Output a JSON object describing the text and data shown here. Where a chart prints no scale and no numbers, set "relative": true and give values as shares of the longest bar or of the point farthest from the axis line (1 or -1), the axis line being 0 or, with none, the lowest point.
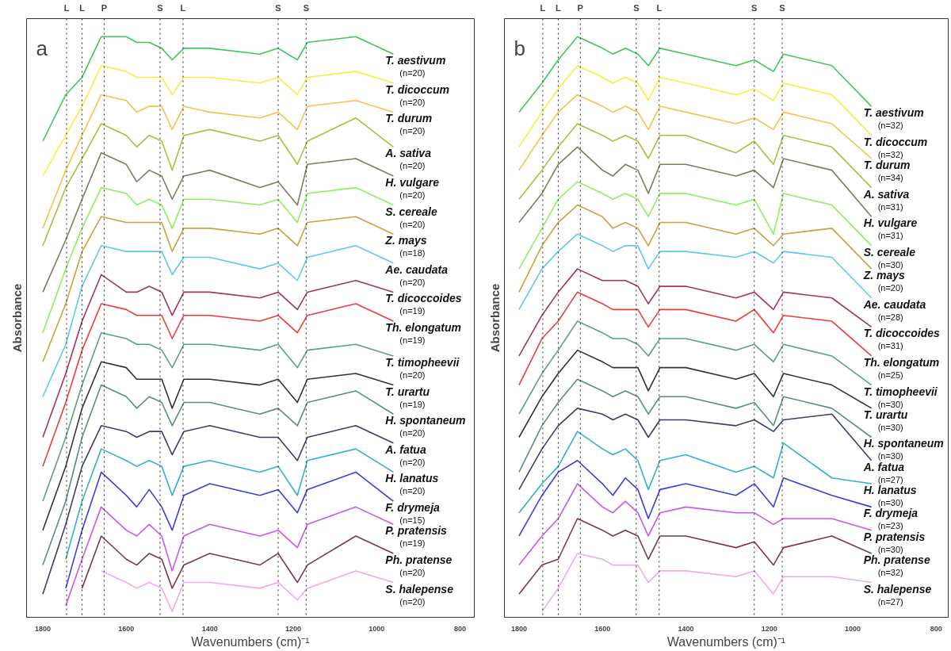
{
  "chart_data": [
    {
      "type": "line",
      "title": "a",
      "xlabel": "Wavenumbers (cm)⁻¹",
      "ylabel": "Absorbance",
      "relative": true,
      "grid": false,
      "xlim": [
        1839,
        766
      ],
      "xticks": [
        1800,
        1600,
        1400,
        1200,
        1000,
        800
      ],
      "x": [
        1800,
        1745,
        1706,
        1660,
        1600,
        1575,
        1545,
        1515,
        1490,
        1462,
        1400,
        1280,
        1236,
        1190,
        1166,
        1050,
        960
      ],
      "ref_lines": [
        {
          "axis": "x",
          "value": 1743,
          "label": "L",
          "line_style": "dotted"
        },
        {
          "axis": "x",
          "value": 1706,
          "label": "L",
          "line_style": "dotted"
        },
        {
          "axis": "x",
          "value": 1653,
          "label": "P",
          "line_style": "dotted"
        },
        {
          "axis": "x",
          "value": 1519,
          "label": "S",
          "line_style": "dotted"
        },
        {
          "axis": "x",
          "value": 1464,
          "label": "L",
          "line_style": "dotted"
        },
        {
          "axis": "x",
          "value": 1236,
          "label": "S",
          "line_style": "dotted"
        },
        {
          "axis": "x",
          "value": 1169,
          "label": "S",
          "line_style": "dotted"
        }
      ],
      "series": [
        {
          "name": "T. aestivum\n(n=20)",
          "color": "#3cc95a",
          "values": [
            0.82,
            0.9,
            0.93,
            1.0,
            1.0,
            0.99,
            0.99,
            0.98,
            0.96,
            0.98,
            0.98,
            0.97,
            0.98,
            0.96,
            0.99,
            1.0,
            0.97
          ]
        },
        {
          "name": "T. dicoccum\n(n=20)",
          "color": "#f2f040",
          "values": [
            0.76,
            0.83,
            0.88,
            0.95,
            0.94,
            0.93,
            0.93,
            0.93,
            0.9,
            0.93,
            0.93,
            0.92,
            0.93,
            0.9,
            0.93,
            0.94,
            0.92
          ]
        },
        {
          "name": "T. durum\n(n=20)",
          "color": "#f5c24a",
          "values": [
            0.67,
            0.77,
            0.83,
            0.9,
            0.89,
            0.87,
            0.88,
            0.88,
            0.84,
            0.88,
            0.87,
            0.86,
            0.87,
            0.84,
            0.88,
            0.89,
            0.87
          ]
        },
        {
          "name": "A. sativa\n(n=20)",
          "color": "#a4c23c",
          "values": [
            0.64,
            0.74,
            0.79,
            0.85,
            0.83,
            0.81,
            0.83,
            0.82,
            0.77,
            0.83,
            0.84,
            0.82,
            0.83,
            0.78,
            0.82,
            0.86,
            0.81
          ]
        },
        {
          "name": "H. vulgare\n(n=20)",
          "color": "#7d7d62",
          "values": [
            0.56,
            0.65,
            0.72,
            0.8,
            0.78,
            0.75,
            0.77,
            0.76,
            0.72,
            0.76,
            0.77,
            0.74,
            0.75,
            0.71,
            0.78,
            0.79,
            0.76
          ]
        },
        {
          "name": "S. cereale\n(n=20)",
          "color": "#8ef05a",
          "values": [
            0.49,
            0.6,
            0.67,
            0.74,
            0.73,
            0.71,
            0.72,
            0.71,
            0.67,
            0.72,
            0.72,
            0.71,
            0.72,
            0.68,
            0.73,
            0.74,
            0.71
          ]
        },
        {
          "name": "Z. mays\n(n=18)",
          "color": "#c9a23e",
          "values": [
            0.44,
            0.54,
            0.63,
            0.69,
            0.68,
            0.68,
            0.68,
            0.68,
            0.63,
            0.67,
            0.67,
            0.66,
            0.67,
            0.64,
            0.68,
            0.69,
            0.66
          ]
        },
        {
          "name": "Ae. caudata\n(n=20)",
          "color": "#5ccaf0",
          "values": [
            0.38,
            0.47,
            0.57,
            0.64,
            0.63,
            0.63,
            0.63,
            0.63,
            0.59,
            0.62,
            0.62,
            0.6,
            0.61,
            0.58,
            0.62,
            0.64,
            0.61
          ]
        },
        {
          "name": "T. dicoccoides\n(n=19)",
          "color": "#a3335e",
          "values": [
            0.31,
            0.42,
            0.51,
            0.59,
            0.56,
            0.56,
            0.57,
            0.56,
            0.52,
            0.56,
            0.56,
            0.55,
            0.56,
            0.53,
            0.56,
            0.58,
            0.56
          ]
        },
        {
          "name": "Th. elongatum\n(n=19)",
          "color": "#ee3b3b",
          "values": [
            0.26,
            0.37,
            0.46,
            0.54,
            0.53,
            0.52,
            0.52,
            0.52,
            0.48,
            0.52,
            0.52,
            0.51,
            0.52,
            0.49,
            0.52,
            0.54,
            0.51
          ]
        },
        {
          "name": "T. timopheevii\n(n=20)",
          "color": "#5aa084",
          "values": [
            0.2,
            0.31,
            0.4,
            0.49,
            0.48,
            0.47,
            0.47,
            0.46,
            0.43,
            0.47,
            0.47,
            0.46,
            0.47,
            0.43,
            0.46,
            0.47,
            0.45
          ]
        },
        {
          "name": "T. urartu\n(n=19)",
          "color": "#333333",
          "values": [
            0.15,
            0.26,
            0.36,
            0.44,
            0.43,
            0.41,
            0.41,
            0.41,
            0.36,
            0.41,
            0.41,
            0.4,
            0.41,
            0.37,
            0.41,
            0.42,
            0.4
          ]
        },
        {
          "name": "H. spontaneum\n(n=20)",
          "color": "#5c8c88",
          "values": [
            0.09,
            0.2,
            0.31,
            0.4,
            0.38,
            0.36,
            0.38,
            0.37,
            0.33,
            0.37,
            0.37,
            0.35,
            0.36,
            0.33,
            0.37,
            0.39,
            0.35
          ]
        },
        {
          "name": "A. fatua\n(n=20)",
          "color": "#3c3c6c",
          "values": [
            0.04,
            0.16,
            0.26,
            0.33,
            0.32,
            0.31,
            0.32,
            0.32,
            0.28,
            0.32,
            0.33,
            0.31,
            0.31,
            0.27,
            0.31,
            0.33,
            0.3
          ]
        },
        {
          "name": "H. lanatus\n(n=20)",
          "color": "#30b2cc",
          "values": [
            null,
            0.1,
            0.2,
            0.29,
            0.27,
            0.26,
            0.27,
            0.26,
            0.21,
            0.26,
            0.27,
            0.25,
            0.26,
            0.21,
            0.27,
            0.29,
            0.25
          ]
        },
        {
          "name": "F. drymeja\n(n=15)",
          "color": "#3c3ce0",
          "values": [
            null,
            0.05,
            0.15,
            0.25,
            0.21,
            0.19,
            0.22,
            0.19,
            0.15,
            0.21,
            0.23,
            0.21,
            0.22,
            0.18,
            0.22,
            0.25,
            0.2
          ]
        },
        {
          "name": "P. pratensis\n(n=19)",
          "color": "#cc55ee",
          "values": [
            null,
            0.02,
            0.1,
            0.19,
            0.15,
            0.14,
            0.16,
            0.14,
            0.08,
            0.14,
            0.16,
            0.14,
            0.15,
            0.12,
            0.16,
            0.19,
            0.16
          ]
        },
        {
          "name": "Ph. pratense\n(n=20)",
          "color": "#7a3a4a",
          "values": [
            null,
            null,
            0.05,
            0.14,
            0.1,
            0.09,
            0.11,
            0.1,
            0.05,
            0.09,
            0.11,
            0.09,
            0.11,
            0.06,
            0.09,
            0.14,
            0.11
          ]
        },
        {
          "name": "S. halepense\n(n=20)",
          "color": "#eeaaee",
          "values": [
            null,
            null,
            null,
            0.08,
            0.06,
            0.05,
            0.06,
            0.05,
            0.01,
            0.06,
            0.06,
            0.05,
            0.06,
            0.03,
            0.05,
            0.08,
            0.06
          ]
        }
      ]
    },
    {
      "type": "line",
      "title": "b",
      "xlabel": "Wavenumbers (cm)⁻¹",
      "ylabel": "Absorbance",
      "relative": true,
      "grid": false,
      "xlim": [
        1835,
        771
      ],
      "xticks": [
        1800,
        1600,
        1400,
        1200,
        1000,
        800
      ],
      "x": [
        1800,
        1745,
        1706,
        1660,
        1600,
        1575,
        1545,
        1515,
        1490,
        1462,
        1400,
        1280,
        1236,
        1190,
        1166,
        1050,
        955
      ],
      "ref_lines": [
        {
          "axis": "x",
          "value": 1743,
          "label": "L",
          "line_style": "dotted"
        },
        {
          "axis": "x",
          "value": 1706,
          "label": "L",
          "line_style": "dotted"
        },
        {
          "axis": "x",
          "value": 1653,
          "label": "P",
          "line_style": "dotted"
        },
        {
          "axis": "x",
          "value": 1519,
          "label": "S",
          "line_style": "dotted"
        },
        {
          "axis": "x",
          "value": 1464,
          "label": "L",
          "line_style": "dotted"
        },
        {
          "axis": "x",
          "value": 1236,
          "label": "S",
          "line_style": "dotted"
        },
        {
          "axis": "x",
          "value": 1169,
          "label": "S",
          "line_style": "dotted"
        }
      ],
      "series": [
        {
          "name": "T. aestivum\n(n=32)",
          "color": "#3cc95a",
          "values": [
            0.87,
            0.92,
            0.96,
            1.0,
            0.98,
            0.97,
            0.98,
            0.97,
            0.95,
            0.98,
            0.97,
            0.95,
            0.96,
            0.94,
            0.97,
            0.95,
            0.88
          ]
        },
        {
          "name": "T. dicoccum\n(n=32)",
          "color": "#f2f040",
          "values": [
            0.81,
            0.87,
            0.91,
            0.95,
            0.93,
            0.92,
            0.93,
            0.92,
            0.89,
            0.93,
            0.92,
            0.9,
            0.91,
            0.89,
            0.92,
            0.9,
            0.83
          ]
        },
        {
          "name": "T. durum\n(n=34)",
          "color": "#f5c24a",
          "values": [
            0.77,
            0.83,
            0.87,
            0.9,
            0.88,
            0.87,
            0.88,
            0.87,
            0.84,
            0.88,
            0.87,
            0.85,
            0.86,
            0.84,
            0.87,
            0.85,
            0.79
          ]
        },
        {
          "name": "A. sativa\n(n=31)",
          "color": "#a4c23c",
          "values": [
            0.72,
            0.77,
            0.81,
            0.85,
            0.83,
            0.82,
            0.83,
            0.82,
            0.79,
            0.83,
            0.83,
            0.8,
            0.82,
            0.78,
            0.83,
            0.81,
            0.74
          ]
        },
        {
          "name": "H. vulgare\n(n=31)",
          "color": "#7d7d62",
          "values": [
            0.68,
            0.73,
            0.78,
            0.81,
            0.77,
            0.76,
            0.78,
            0.77,
            0.73,
            0.78,
            0.78,
            0.76,
            0.77,
            0.74,
            0.79,
            0.77,
            0.69
          ]
        },
        {
          "name": "S. cereale\n(n=30)",
          "color": "#8ef05a",
          "values": [
            0.6,
            0.67,
            0.72,
            0.75,
            0.73,
            0.72,
            0.73,
            0.72,
            0.69,
            0.73,
            0.73,
            0.71,
            0.72,
            0.66,
            0.73,
            0.71,
            0.64
          ]
        },
        {
          "name": "Z. mays\n(n=20)",
          "color": "#c9a23e",
          "values": [
            0.56,
            0.64,
            0.68,
            0.71,
            0.69,
            0.67,
            0.68,
            0.67,
            0.64,
            0.68,
            0.68,
            0.66,
            0.67,
            0.64,
            0.66,
            0.67,
            0.6
          ]
        },
        {
          "name": "Ae. caudata\n(n=28)",
          "color": "#5ccaf0",
          "values": [
            0.53,
            0.6,
            0.63,
            0.66,
            0.64,
            0.63,
            0.64,
            0.64,
            0.6,
            0.63,
            0.63,
            0.62,
            0.63,
            0.61,
            0.63,
            0.62,
            0.55
          ]
        },
        {
          "name": "T. dicoccoides\n(n=31)",
          "color": "#a3335e",
          "values": [
            0.45,
            0.52,
            0.56,
            0.6,
            0.58,
            0.58,
            0.58,
            0.57,
            0.54,
            0.57,
            0.57,
            0.55,
            0.56,
            0.53,
            0.56,
            0.55,
            0.5
          ]
        },
        {
          "name": "Th. elongatum\n(n=25)",
          "color": "#ee3b3b",
          "values": [
            0.4,
            0.48,
            0.51,
            0.56,
            0.54,
            0.53,
            0.53,
            0.53,
            0.5,
            0.53,
            0.53,
            0.51,
            0.53,
            0.49,
            0.52,
            0.51,
            0.45
          ]
        },
        {
          "name": "T. timopheevii\n(n=30)",
          "color": "#5aa084",
          "values": [
            0.35,
            0.42,
            0.46,
            0.51,
            0.49,
            0.48,
            0.48,
            0.47,
            0.45,
            0.48,
            0.48,
            0.46,
            0.47,
            0.44,
            0.47,
            0.45,
            0.4
          ]
        },
        {
          "name": "T. urartu\n(n=30)",
          "color": "#333333",
          "values": [
            0.31,
            0.38,
            0.42,
            0.46,
            0.44,
            0.43,
            0.43,
            0.43,
            0.39,
            0.43,
            0.43,
            0.41,
            0.42,
            0.38,
            0.42,
            0.4,
            0.36
          ]
        },
        {
          "name": "H. spontaneum\n(n=30)",
          "color": "#5c8c88",
          "values": [
            0.25,
            0.33,
            0.37,
            0.41,
            0.39,
            0.38,
            0.39,
            0.38,
            0.35,
            0.38,
            0.38,
            0.36,
            0.37,
            0.33,
            0.38,
            0.36,
            0.31
          ]
        },
        {
          "name": "A. fatua\n(n=27)",
          "color": "#3c3c6c",
          "values": [
            0.22,
            0.29,
            0.33,
            0.36,
            0.35,
            0.34,
            0.35,
            0.34,
            0.31,
            0.34,
            0.34,
            0.33,
            0.34,
            0.32,
            0.34,
            0.35,
            0.27
          ]
        },
        {
          "name": "H. lanatus\n(n=30)",
          "color": "#30b2cc",
          "values": [
            0.18,
            0.23,
            0.26,
            0.32,
            0.29,
            0.28,
            0.29,
            0.27,
            0.22,
            0.27,
            0.28,
            0.25,
            0.26,
            0.24,
            0.3,
            0.24,
            0.23
          ]
        },
        {
          "name": "F. drymeja\n(n=23)",
          "color": "#3c3ce0",
          "values": [
            0.14,
            0.21,
            0.25,
            0.27,
            0.23,
            0.21,
            0.24,
            0.22,
            0.17,
            0.22,
            0.23,
            0.21,
            0.23,
            0.19,
            0.24,
            0.21,
            0.19
          ]
        },
        {
          "name": "P. pratensis\n(n=30)",
          "color": "#cc55ee",
          "values": [
            0.09,
            0.14,
            0.17,
            0.23,
            0.19,
            0.18,
            0.2,
            0.18,
            0.14,
            0.18,
            0.19,
            0.18,
            0.18,
            0.16,
            0.17,
            0.17,
            0.15
          ]
        },
        {
          "name": "Ph. pratense\n(n=32)",
          "color": "#7a3a4a",
          "values": [
            0.04,
            0.09,
            0.1,
            0.17,
            0.15,
            0.14,
            0.15,
            0.14,
            0.1,
            0.14,
            0.14,
            0.12,
            0.13,
            0.09,
            0.12,
            0.14,
            0.11
          ]
        },
        {
          "name": "S. halepense\n(n=27)",
          "color": "#eeaaee",
          "values": [
            null,
            0.01,
            0.05,
            0.11,
            0.1,
            0.09,
            0.09,
            0.09,
            0.06,
            0.08,
            0.08,
            0.07,
            0.08,
            0.04,
            0.07,
            0.07,
            0.06
          ]
        }
      ]
    }
  ]
}
